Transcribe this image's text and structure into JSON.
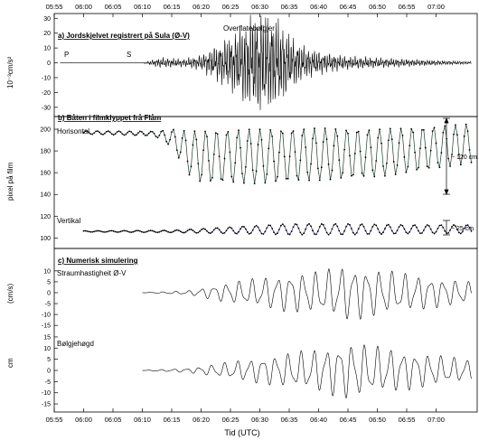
{
  "chart_data": {
    "type": "line",
    "x_axis": {
      "label": "Tid  (UTC)",
      "ticks": [
        "05:55",
        "06:00",
        "06:05",
        "06:10",
        "06:15",
        "06:20",
        "06:25",
        "06:30",
        "06:35",
        "06:40",
        "06:45",
        "06:50",
        "06:55",
        "07:00"
      ],
      "range_minutes": [
        -5,
        67
      ]
    },
    "panels": [
      {
        "id": "a",
        "title": "a) Jordskjelvet registrert på Sula (Ø-V)",
        "ylabel": "10⁻³cm/s²",
        "yticks": [
          30,
          20,
          10,
          0,
          -10,
          -20,
          -30
        ],
        "ylim": [
          -35,
          32
        ],
        "annotations": [
          "P",
          "S",
          "Overflatebølgjer"
        ],
        "series": [
          {
            "values_time_min": [
              -4,
              10,
              13,
              17,
              20,
              22,
              25,
              27,
              29,
              30,
              31,
              33,
              35,
              38,
              41,
              45,
              50,
              55,
              60,
              66
            ],
            "values_amplitude": [
              0,
              0,
              4,
              3,
              6,
              12,
              22,
              30,
              35,
              38,
              36,
              33,
              22,
              12,
              8,
              5,
              4,
              3,
              2,
              1
            ]
          }
        ]
      },
      {
        "id": "b",
        "title": "b) Båten i filmklyppet frå Flåm",
        "ylabel": "pixel på film",
        "yticks": [
          200,
          180,
          160,
          140,
          120,
          100
        ],
        "ylim": [
          92,
          210
        ],
        "series": [
          {
            "name": "Horisontal",
            "values_time_min": [
              0,
              12,
              15,
              18,
              20,
              30,
              40,
              50,
              58,
              66
            ],
            "values_mean": [
              197,
              196,
              192,
              178,
              175,
              175,
              177,
              178,
              182,
              187
            ],
            "values_amplitude": [
              1.5,
              2,
              8,
              20,
              24,
              25,
              24,
              22,
              20,
              18
            ]
          },
          {
            "name": "Vertikal",
            "values_time_min": [
              0,
              15,
              25,
              35,
              45,
              55,
              66
            ],
            "values_mean": [
              106,
              106,
              107,
              108,
              108,
              108,
              108
            ],
            "values_amplitude": [
              0.5,
              1,
              3,
              5,
              5,
              4,
              4
            ]
          }
        ],
        "scale_annotations": [
          "~ 120 cm",
          "~ 25 cm"
        ]
      },
      {
        "id": "c",
        "title": "c) Numerisk simulering",
        "series": [
          {
            "name": "Straumhastigheit Ø-V",
            "ylabel": "(cm/s)",
            "yticks": [
              10,
              5,
              0,
              -5,
              -10,
              -15
            ],
            "ylim": [
              -17,
              12
            ],
            "values_time_min": [
              10,
              18,
              25,
              30,
              35,
              40,
              45,
              50,
              55,
              60,
              66
            ],
            "values_amplitude": [
              0,
              1,
              5,
              7,
              9,
              10,
              13,
              11,
              9,
              7,
              5
            ]
          },
          {
            "name": "Bølgjehøgd",
            "ylabel": "cm",
            "yticks": [
              15,
              10,
              5,
              0,
              -5,
              -10,
              -15
            ],
            "ylim": [
              -17,
              17
            ],
            "values_time_min": [
              10,
              18,
              25,
              30,
              35,
              40,
              45,
              50,
              55,
              60,
              66
            ],
            "values_amplitude": [
              0,
              1,
              4,
              6,
              8,
              10,
              13,
              11,
              9,
              7,
              5
            ]
          }
        ]
      }
    ]
  }
}
